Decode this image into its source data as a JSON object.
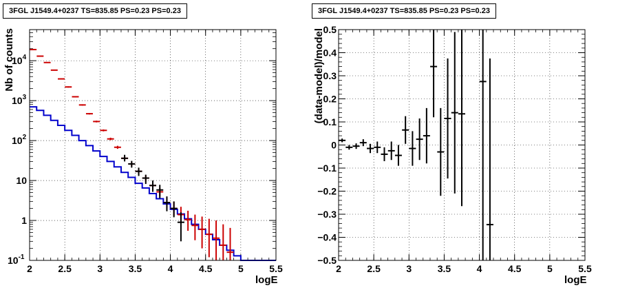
{
  "chart_data": [
    {
      "type": "histogram-errorbars",
      "title": "3FGL J1549.4+0237 TS=835.85 PS=0.23 PS=0.23",
      "xlabel": "logE",
      "ylabel": "Nb of counts",
      "xlim": [
        2,
        5.5
      ],
      "ylim": [
        0.1,
        60000
      ],
      "yscale": "log",
      "grid": true,
      "x_ticks": [
        "2",
        "2.5",
        "3",
        "3.5",
        "4",
        "4.5",
        "5",
        "5.5"
      ],
      "y_ticks": [
        {
          "value": 0.1,
          "label": "10",
          "sup": "-1"
        },
        {
          "value": 1,
          "label": "1",
          "sup": ""
        },
        {
          "value": 10,
          "label": "10",
          "sup": ""
        },
        {
          "value": 100,
          "label": "10",
          "sup": "2"
        },
        {
          "value": 1000,
          "label": "10",
          "sup": "3"
        },
        {
          "value": 10000,
          "label": "10",
          "sup": "4"
        }
      ],
      "series": [
        {
          "color": "#0000cc",
          "style": "step",
          "bin_edges": [
            2.0,
            2.1,
            2.2,
            2.3,
            2.4,
            2.5,
            2.6,
            2.7,
            2.8,
            2.9,
            3.0,
            3.1,
            3.2,
            3.3,
            3.4,
            3.5,
            3.6,
            3.7,
            3.8,
            3.9,
            4.0,
            4.1,
            4.2,
            4.3,
            4.4,
            4.5,
            4.6,
            4.7,
            4.8,
            4.9,
            5.0,
            5.1,
            5.2,
            5.3,
            5.4,
            5.5
          ],
          "values": [
            700,
            570,
            430,
            320,
            240,
            180,
            135,
            100,
            75,
            55,
            40,
            30,
            22,
            16,
            12,
            8.5,
            6.5,
            4.7,
            3.5,
            2.6,
            1.9,
            1.45,
            1.1,
            0.8,
            0.6,
            0.45,
            0.33,
            0.24,
            0.18,
            0.13,
            0.1,
            0.1,
            0.1,
            0.1,
            0.1
          ]
        },
        {
          "color": "#cc0000",
          "style": "errorbars",
          "x": [
            2.05,
            2.15,
            2.25,
            2.35,
            2.45,
            2.55,
            2.65,
            2.75,
            2.85,
            2.95,
            3.05,
            3.15,
            3.25,
            3.35,
            3.45,
            3.55,
            3.65,
            3.75,
            3.85,
            3.95,
            4.05,
            4.15,
            4.25,
            4.35,
            4.45,
            4.55,
            4.65,
            4.75,
            4.85
          ],
          "y": [
            19000,
            13000,
            9000,
            5800,
            3500,
            2200,
            1250,
            780,
            470,
            300,
            180,
            110,
            68,
            36,
            26,
            17,
            11.5,
            7.5,
            5.2,
            2.8,
            2.0,
            1.4,
            1.05,
            0.75,
            0.6,
            0.45,
            0.36,
            0.24,
            0.16
          ],
          "y_low": [
            18800,
            12800,
            8800,
            5650,
            3400,
            2120,
            1200,
            750,
            450,
            285,
            170,
            102,
            62,
            32,
            23,
            14.5,
            9.5,
            6,
            4,
            2,
            1.3,
            0.85,
            0.55,
            0.32,
            0.2,
            0.12,
            0.1,
            0.1,
            0.1
          ],
          "y_high": [
            19200,
            13200,
            9200,
            5950,
            3600,
            2280,
            1300,
            810,
            490,
            315,
            190,
            118,
            74,
            40,
            29,
            19.5,
            13.5,
            9.2,
            6.5,
            3.8,
            2.9,
            2.2,
            1.75,
            1.4,
            1.25,
            1.1,
            1.0,
            0.8,
            0.65
          ]
        },
        {
          "color": "#000000",
          "style": "errorbars",
          "x": [
            3.35,
            3.45,
            3.55,
            3.65,
            3.75,
            3.85,
            3.95,
            4.05,
            4.15
          ],
          "y": [
            36,
            26,
            17,
            11.5,
            7.5,
            5.8,
            2.8,
            2.0,
            0.9
          ],
          "y_low": [
            30,
            21,
            13,
            8.2,
            5.2,
            3.6,
            1.7,
            1.2,
            0.3
          ],
          "y_high": [
            44,
            31,
            21,
            14,
            10,
            7.8,
            4.0,
            3.0,
            1.6
          ]
        }
      ]
    },
    {
      "type": "errorbars",
      "title": "3FGL J1549.4+0237 TS=835.85 PS=0.23 PS=0.23",
      "xlabel": "logE",
      "ylabel": "(data-model)/model",
      "xlim": [
        2,
        5.5
      ],
      "ylim": [
        -0.5,
        0.5
      ],
      "grid": true,
      "x_ticks": [
        "2",
        "2.5",
        "3",
        "3.5",
        "4",
        "4.5",
        "5",
        "5.5"
      ],
      "y_ticks": [
        "-0.5",
        "-0.4",
        "-0.3",
        "-0.2",
        "-0.1",
        "0",
        "0.1",
        "0.2",
        "0.3",
        "0.4",
        "0.5"
      ],
      "series": [
        {
          "color": "#000000",
          "x": [
            2.05,
            2.15,
            2.25,
            2.35,
            2.45,
            2.55,
            2.65,
            2.75,
            2.85,
            2.95,
            3.05,
            3.15,
            3.25,
            3.35,
            3.45,
            3.55,
            3.65,
            3.75,
            4.05,
            4.15
          ],
          "y": [
            0.02,
            -0.01,
            -0.005,
            0.01,
            -0.015,
            -0.01,
            -0.04,
            -0.025,
            -0.045,
            0.065,
            -0.015,
            0.025,
            0.04,
            0.34,
            -0.03,
            0.115,
            0.14,
            0.135,
            0.275,
            -0.345
          ],
          "y_err": [
            0.008,
            0.01,
            0.012,
            0.015,
            0.02,
            0.025,
            0.03,
            0.04,
            0.045,
            0.06,
            0.075,
            0.09,
            0.12,
            0.22,
            0.19,
            0.26,
            0.35,
            0.4,
            0.8,
            0.72
          ]
        }
      ]
    }
  ]
}
